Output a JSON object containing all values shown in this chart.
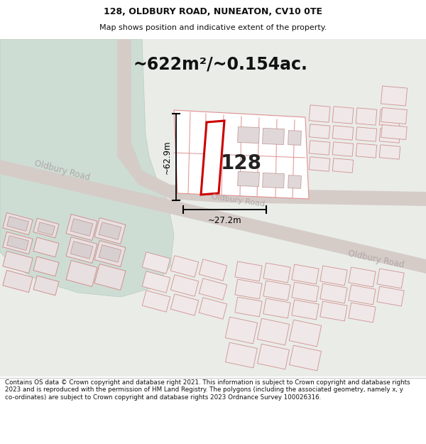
{
  "title_line1": "128, OLDBURY ROAD, NUNEATON, CV10 0TE",
  "title_line2": "Map shows position and indicative extent of the property.",
  "area_text": "~622m²/~0.154ac.",
  "label_128": "128",
  "dim_height": "~62.9m",
  "dim_width": "~27.2m",
  "road_label1": "Oldbury Road",
  "road_label2": "Oldbury Road",
  "road_label3": "Oldbury Road",
  "footer_text": "Contains OS data © Crown copyright and database right 2021. This information is subject to Crown copyright and database rights 2023 and is reproduced with the permission of HM Land Registry. The polygons (including the associated geometry, namely x, y co-ordinates) are subject to Crown copyright and database rights 2023 Ordnance Survey 100026316.",
  "bg_map_color": "#eaece8",
  "bg_green_color": "#cdddd4",
  "road_color": "#d8cdc8",
  "plot_fill": "#f5f0f0",
  "building_fill_dark": "#d8d0d0",
  "building_fill_light": "#f5eeee",
  "highlight_color": "#cc0000",
  "dim_line_color": "#111111",
  "road_label_color": "#b0a8a8",
  "text_color": "#111111",
  "footer_bg": "#ffffff",
  "header_bg": "#ffffff"
}
